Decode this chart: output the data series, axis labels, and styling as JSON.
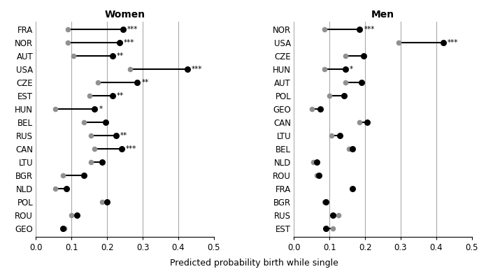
{
  "women": {
    "countries": [
      "FRA",
      "NOR",
      "AUT",
      "USA",
      "CZE",
      "EST",
      "HUN",
      "BEL",
      "RUS",
      "CAN",
      "LTU",
      "BGR",
      "NLD",
      "POL",
      "ROU",
      "GEO"
    ],
    "black_dots": [
      0.245,
      0.235,
      0.215,
      0.425,
      0.285,
      0.215,
      0.165,
      0.195,
      0.225,
      0.24,
      0.185,
      0.135,
      0.085,
      0.2,
      0.115,
      0.075
    ],
    "gray_dots": [
      0.09,
      0.09,
      0.105,
      0.265,
      0.175,
      0.15,
      0.055,
      0.135,
      0.155,
      0.165,
      0.155,
      0.075,
      0.055,
      0.185,
      0.1,
      0.08
    ],
    "stars": [
      "***",
      "***",
      "**",
      "***",
      "**",
      "**",
      "*",
      "",
      "**",
      "***",
      "",
      "",
      "",
      "",
      "",
      ""
    ]
  },
  "men": {
    "countries": [
      "NOR",
      "USA",
      "CZE",
      "HUN",
      "AUT",
      "POL",
      "GEO",
      "CAN",
      "LTU",
      "BEL",
      "NLD",
      "ROU",
      "FRA",
      "BGR",
      "RUS",
      "EST"
    ],
    "black_dots": [
      0.185,
      0.42,
      0.195,
      0.145,
      0.19,
      0.14,
      0.075,
      0.205,
      0.13,
      0.165,
      0.065,
      0.07,
      0.165,
      0.09,
      0.11,
      0.09
    ],
    "gray_dots": [
      0.085,
      0.295,
      0.145,
      0.085,
      0.145,
      0.1,
      0.05,
      0.185,
      0.105,
      0.155,
      0.055,
      0.065,
      0.165,
      0.085,
      0.125,
      0.11
    ],
    "stars": [
      "***",
      "***",
      "",
      "*",
      "",
      "",
      "",
      "",
      "",
      "",
      "",
      "",
      "",
      "",
      "",
      ""
    ]
  },
  "xlim": [
    0.0,
    0.5
  ],
  "xticks": [
    0.0,
    0.1,
    0.2,
    0.3,
    0.4,
    0.5
  ],
  "xlabel": "Predicted probability birth while single",
  "vlines": [
    0.1,
    0.2,
    0.3,
    0.4
  ],
  "black_color": "#000000",
  "gray_color": "#909090",
  "title_women": "Women",
  "title_men": "Men",
  "figsize": [
    6.85,
    3.85
  ],
  "dpi": 100
}
